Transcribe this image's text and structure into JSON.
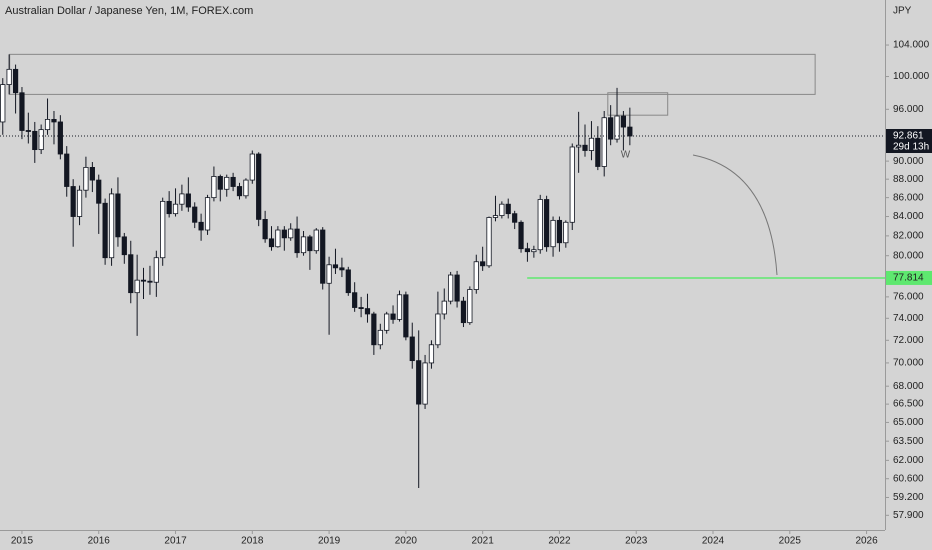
{
  "chart_data": {
    "type": "candlestick",
    "title": "Australian Dollar / Japanese Yen, 1M, FOREX.com",
    "currency": "JPY",
    "log_scale": true,
    "ylim": [
      56.85,
      110.0
    ],
    "yticks": [
      {
        "value": 104,
        "label": "104.000"
      },
      {
        "value": 100,
        "label": "100.000"
      },
      {
        "value": 96,
        "label": "96.000"
      },
      {
        "value": 90,
        "label": "90.000"
      },
      {
        "value": 88,
        "label": "88.000"
      },
      {
        "value": 86,
        "label": "86.000"
      },
      {
        "value": 84,
        "label": "84.000"
      },
      {
        "value": 82,
        "label": "82.000"
      },
      {
        "value": 80,
        "label": "80.000"
      },
      {
        "value": 76,
        "label": "76.000"
      },
      {
        "value": 74,
        "label": "74.000"
      },
      {
        "value": 72,
        "label": "72.000"
      },
      {
        "value": 70,
        "label": "70.000"
      },
      {
        "value": 68,
        "label": "68.000"
      },
      {
        "value": 66.5,
        "label": "66.500"
      },
      {
        "value": 65,
        "label": "65.000"
      },
      {
        "value": 63.5,
        "label": "63.500"
      },
      {
        "value": 62,
        "label": "62.000"
      },
      {
        "value": 60.6,
        "label": "60.600"
      },
      {
        "value": 59.2,
        "label": "59.200"
      },
      {
        "value": 57.9,
        "label": "57.900"
      }
    ],
    "xlim": [
      2014.714,
      2026.24
    ],
    "xticks": [
      2015,
      2016,
      2017,
      2018,
      2019,
      2020,
      2021,
      2022,
      2023,
      2024,
      2025,
      2026
    ],
    "up_color": "#ffffff",
    "down_color": "#131722",
    "x": [
      2014.75,
      2014.833,
      2014.917,
      2015.0,
      2015.083,
      2015.167,
      2015.25,
      2015.333,
      2015.417,
      2015.5,
      2015.583,
      2015.667,
      2015.75,
      2015.833,
      2015.917,
      2016.0,
      2016.083,
      2016.167,
      2016.25,
      2016.333,
      2016.417,
      2016.5,
      2016.583,
      2016.667,
      2016.75,
      2016.833,
      2016.917,
      2017.0,
      2017.083,
      2017.167,
      2017.25,
      2017.333,
      2017.417,
      2017.5,
      2017.583,
      2017.667,
      2017.75,
      2017.833,
      2017.917,
      2018.0,
      2018.083,
      2018.167,
      2018.25,
      2018.333,
      2018.417,
      2018.5,
      2018.583,
      2018.667,
      2018.75,
      2018.833,
      2018.917,
      2019.0,
      2019.083,
      2019.167,
      2019.25,
      2019.333,
      2019.417,
      2019.5,
      2019.583,
      2019.667,
      2019.75,
      2019.833,
      2019.917,
      2020.0,
      2020.083,
      2020.167,
      2020.25,
      2020.333,
      2020.417,
      2020.5,
      2020.583,
      2020.667,
      2020.75,
      2020.833,
      2020.917,
      2021.0,
      2021.083,
      2021.167,
      2021.25,
      2021.333,
      2021.417,
      2021.5,
      2021.583,
      2021.667,
      2021.75,
      2021.833,
      2021.917,
      2022.0,
      2022.083,
      2022.167,
      2022.25,
      2022.333,
      2022.417,
      2022.5,
      2022.583,
      2022.667,
      2022.75,
      2022.833,
      2022.917
    ],
    "open": [
      94.5,
      99.0,
      100.9,
      98.0,
      93.5,
      93.4,
      91.3,
      93.6,
      94.8,
      94.5,
      90.8,
      87.2,
      84.0,
      86.8,
      89.3,
      87.9,
      85.4,
      79.8,
      86.4,
      81.9,
      80.1,
      76.4,
      77.6,
      77.5,
      77.4,
      79.8,
      85.6,
      84.3,
      85.3,
      86.4,
      85.0,
      83.4,
      82.6,
      86.0,
      88.3,
      86.9,
      88.2,
      87.2,
      86.2,
      87.9,
      90.8,
      83.7,
      81.7,
      80.9,
      82.6,
      81.8,
      82.7,
      80.3,
      81.9,
      80.5,
      82.6,
      77.3,
      79.1,
      78.8,
      78.6,
      76.4,
      75.0,
      74.9,
      74.4,
      71.6,
      72.9,
      74.4,
      73.9,
      76.2,
      72.3,
      70.2,
      66.5,
      70.0,
      71.6,
      74.4,
      75.6,
      78.1,
      75.6,
      73.6,
      76.7,
      79.4,
      79.0,
      83.9,
      84.1,
      85.3,
      84.3,
      83.4,
      80.7,
      80.4,
      80.6,
      85.8,
      80.9,
      83.6,
      81.3,
      83.4,
      91.6,
      91.8,
      91.2,
      92.6,
      89.4,
      95.0,
      92.5,
      95.2,
      93.9
    ],
    "high": [
      99.8,
      102.8,
      101.5,
      98.7,
      95.6,
      94.5,
      94.2,
      97.3,
      95.8,
      95.3,
      91.7,
      88.0,
      87.3,
      90.5,
      89.9,
      88.5,
      85.9,
      87.0,
      88.2,
      82.3,
      81.5,
      80.1,
      78.8,
      79.0,
      80.5,
      86.0,
      86.7,
      87.0,
      87.4,
      88.2,
      85.5,
      84.3,
      86.3,
      89.4,
      88.5,
      88.5,
      88.7,
      87.6,
      88.1,
      91.2,
      91.0,
      84.6,
      83.0,
      83.0,
      83.0,
      83.3,
      84.0,
      82.5,
      82.1,
      82.8,
      82.9,
      79.9,
      80.7,
      79.8,
      78.9,
      77.4,
      76.0,
      76.3,
      74.6,
      73.5,
      74.6,
      75.2,
      76.6,
      76.5,
      73.6,
      72.9,
      70.7,
      72.0,
      76.5,
      76.8,
      78.4,
      78.5,
      76.0,
      77.0,
      80.1,
      80.9,
      84.0,
      86.2,
      85.6,
      85.9,
      84.6,
      83.6,
      81.3,
      81.0,
      86.3,
      86.2,
      84.0,
      84.0,
      83.6,
      92.0,
      95.7,
      94.2,
      94.6,
      94.0,
      95.8,
      96.5,
      98.6,
      95.8,
      96.2
    ],
    "low": [
      93.0,
      97.8,
      95.5,
      92.5,
      92.0,
      89.8,
      90.8,
      93.0,
      91.9,
      90.2,
      86.1,
      80.9,
      83.1,
      86.0,
      86.6,
      82.2,
      79.1,
      79.0,
      80.9,
      79.2,
      75.4,
      72.4,
      75.8,
      76.2,
      76.0,
      79.0,
      83.9,
      84.0,
      84.6,
      84.5,
      82.8,
      81.5,
      82.1,
      85.6,
      85.6,
      86.1,
      86.7,
      85.8,
      85.9,
      87.5,
      83.0,
      81.3,
      80.5,
      80.8,
      80.5,
      81.5,
      79.8,
      80.0,
      78.6,
      80.2,
      76.7,
      72.5,
      78.2,
      77.9,
      76.1,
      74.6,
      74.1,
      73.6,
      70.7,
      71.2,
      72.6,
      73.5,
      73.7,
      72.0,
      69.5,
      59.9,
      66.1,
      69.5,
      71.3,
      73.9,
      75.3,
      75.0,
      73.2,
      73.4,
      76.3,
      78.5,
      78.8,
      83.5,
      83.8,
      83.8,
      82.7,
      80.3,
      79.4,
      79.8,
      80.2,
      80.4,
      79.9,
      80.4,
      80.8,
      82.6,
      88.7,
      90.5,
      90.1,
      89.0,
      88.3,
      91.8,
      92.1,
      91.2,
      91.8
    ],
    "close": [
      99.0,
      100.9,
      98.0,
      93.5,
      93.4,
      91.3,
      93.6,
      94.8,
      94.5,
      90.8,
      87.2,
      84.0,
      86.8,
      89.3,
      87.9,
      85.4,
      79.8,
      86.4,
      81.9,
      80.1,
      76.4,
      77.6,
      77.5,
      77.4,
      79.8,
      85.6,
      84.3,
      85.3,
      86.4,
      85.0,
      83.4,
      82.6,
      86.0,
      88.3,
      86.9,
      88.2,
      87.2,
      86.2,
      87.9,
      90.8,
      83.7,
      81.7,
      80.9,
      82.6,
      81.8,
      82.7,
      80.3,
      81.9,
      80.5,
      82.6,
      77.3,
      79.1,
      78.8,
      78.6,
      76.4,
      75.0,
      74.9,
      74.4,
      71.6,
      72.9,
      74.4,
      73.9,
      76.2,
      72.3,
      70.2,
      66.5,
      70.0,
      71.6,
      74.4,
      75.6,
      78.1,
      75.6,
      73.6,
      76.7,
      79.4,
      79.0,
      83.9,
      84.1,
      85.3,
      84.3,
      83.4,
      80.7,
      80.4,
      80.6,
      85.8,
      80.9,
      83.6,
      81.3,
      83.4,
      91.6,
      91.8,
      91.2,
      92.6,
      89.4,
      95.0,
      92.5,
      95.2,
      93.9,
      92.861
    ],
    "last_price": {
      "value": 92.861,
      "label": "92.861",
      "countdown": "29d 13h"
    },
    "level": {
      "value": 77.814,
      "label": "77.814",
      "x_start": 2021.58,
      "color": "#5ee86f"
    },
    "zones": [
      {
        "x": [
          2014.84,
          2025.33
        ],
        "y": [
          97.8,
          102.8
        ]
      },
      {
        "x": [
          2022.63,
          2023.41
        ],
        "y": [
          95.3,
          98.0
        ]
      }
    ],
    "annotation": {
      "text": "W",
      "x": 2022.86,
      "y": 90.7
    }
  }
}
